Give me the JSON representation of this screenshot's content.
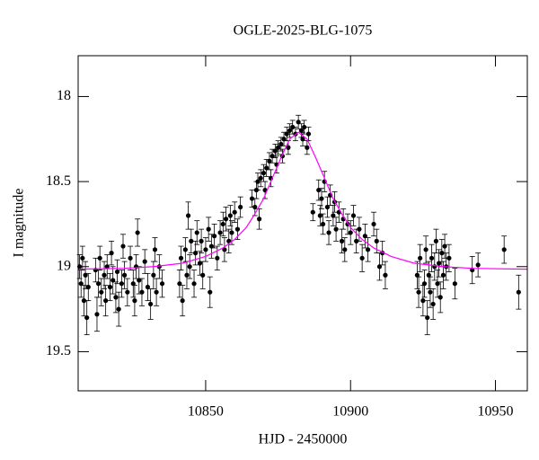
{
  "chart_data": {
    "type": "scatter",
    "title": "OGLE-2025-BLG-1075",
    "xlabel": "HJD - 2450000",
    "ylabel": "I magnitude",
    "xlim": [
      10806,
      10961
    ],
    "ylim": [
      19.73,
      17.76
    ],
    "xticks": [
      10850,
      10900,
      10950
    ],
    "yticks": [
      18,
      18.5,
      19,
      19.5
    ],
    "series": [
      {
        "type": "errorbar",
        "color": "#000000",
        "x": [
          10806.5,
          10807,
          10807.5,
          10808,
          10808.5,
          10809,
          10809.5,
          10812,
          10812.5,
          10813,
          10813.5,
          10814,
          10815,
          10815.5,
          10816,
          10817,
          10817.5,
          10818,
          10819,
          10819.5,
          10820,
          10821,
          10821.5,
          10822,
          10823,
          10824,
          10825,
          10825.5,
          10826,
          10826.5,
          10827,
          10828,
          10829,
          10830,
          10831,
          10832,
          10832.5,
          10833,
          10834,
          10835,
          10841,
          10841.5,
          10842,
          10843,
          10843.5,
          10844,
          10844.5,
          10845,
          10846,
          10846.5,
          10847,
          10848,
          10848.5,
          10849,
          10850,
          10851,
          10851.5,
          10852,
          10853,
          10854,
          10855,
          10856,
          10856.5,
          10857,
          10858,
          10858.5,
          10859,
          10860,
          10861,
          10862,
          10866,
          10867,
          10867.5,
          10868,
          10868.5,
          10869,
          10870,
          10870.5,
          10871,
          10872,
          10872.5,
          10873,
          10874,
          10874.5,
          10875,
          10876,
          10876.5,
          10877,
          10878,
          10878.5,
          10879,
          10880,
          10881,
          10882,
          10883,
          10883.5,
          10884,
          10885,
          10885.5,
          10887,
          10889,
          10889.5,
          10890,
          10890.5,
          10891,
          10892,
          10892.5,
          10893,
          10894,
          10894.5,
          10895,
          10896,
          10897,
          10897.5,
          10898,
          10899,
          10900,
          10901,
          10902,
          10903,
          10904,
          10905,
          10906,
          10908,
          10909,
          10910,
          10911,
          10912,
          10923,
          10923.5,
          10924,
          10925,
          10925.5,
          10926,
          10926.5,
          10927,
          10927.5,
          10928,
          10928.5,
          10929,
          10929.5,
          10930,
          10930.5,
          10931,
          10931.5,
          10932,
          10932.5,
          10933,
          10934,
          10936,
          10942,
          10944,
          10953,
          10958
        ],
        "values": [
          19.0,
          19.1,
          18.95,
          19.2,
          19.05,
          19.3,
          19.12,
          19.02,
          19.28,
          19.1,
          18.95,
          19.15,
          19.05,
          19.2,
          19.0,
          19.12,
          18.92,
          19.08,
          19.18,
          19.03,
          19.25,
          19.1,
          18.88,
          19.05,
          19.15,
          18.95,
          19.1,
          19.2,
          19.0,
          18.8,
          19.08,
          19.15,
          18.97,
          19.12,
          19.22,
          19.05,
          18.9,
          19.15,
          19.0,
          19.1,
          19.1,
          18.95,
          19.2,
          18.9,
          19.05,
          18.7,
          19.0,
          18.85,
          19.1,
          18.92,
          18.8,
          18.98,
          18.85,
          19.05,
          18.9,
          18.78,
          19.15,
          18.88,
          18.82,
          18.95,
          18.8,
          18.75,
          18.9,
          18.72,
          18.85,
          18.7,
          18.8,
          18.68,
          18.78,
          18.65,
          18.6,
          18.65,
          18.55,
          18.5,
          18.72,
          18.48,
          18.45,
          18.55,
          18.42,
          18.38,
          18.48,
          18.35,
          18.32,
          18.4,
          18.3,
          18.28,
          18.35,
          18.25,
          18.22,
          18.3,
          18.2,
          18.18,
          18.22,
          18.15,
          18.2,
          18.25,
          18.18,
          18.3,
          18.22,
          18.68,
          18.55,
          18.7,
          18.6,
          18.75,
          18.5,
          18.65,
          18.8,
          18.58,
          18.7,
          18.62,
          18.78,
          18.68,
          18.85,
          18.72,
          18.9,
          18.75,
          18.8,
          18.7,
          18.85,
          18.78,
          18.95,
          18.82,
          18.9,
          18.75,
          18.85,
          19.0,
          18.92,
          19.05,
          19.05,
          19.15,
          18.95,
          19.2,
          19.1,
          18.9,
          19.3,
          19.05,
          19.15,
          18.95,
          19.22,
          19.0,
          18.85,
          19.1,
          18.98,
          19.18,
          18.92,
          19.05,
          18.88,
          19.0,
          18.95,
          19.1,
          19.02,
          18.99,
          18.9,
          19.15
        ],
        "errors": [
          0.07,
          0.08,
          0.07,
          0.09,
          0.08,
          0.1,
          0.08,
          0.07,
          0.1,
          0.08,
          0.07,
          0.08,
          0.08,
          0.09,
          0.07,
          0.08,
          0.07,
          0.08,
          0.09,
          0.07,
          0.1,
          0.08,
          0.07,
          0.08,
          0.08,
          0.07,
          0.08,
          0.09,
          0.07,
          0.08,
          0.08,
          0.08,
          0.07,
          0.08,
          0.09,
          0.08,
          0.07,
          0.08,
          0.07,
          0.08,
          0.08,
          0.07,
          0.09,
          0.07,
          0.08,
          0.08,
          0.07,
          0.07,
          0.08,
          0.07,
          0.07,
          0.07,
          0.07,
          0.08,
          0.07,
          0.07,
          0.09,
          0.07,
          0.07,
          0.07,
          0.07,
          0.07,
          0.07,
          0.07,
          0.07,
          0.06,
          0.07,
          0.06,
          0.06,
          0.06,
          0.05,
          0.05,
          0.05,
          0.05,
          0.06,
          0.05,
          0.05,
          0.05,
          0.05,
          0.05,
          0.05,
          0.04,
          0.04,
          0.05,
          0.04,
          0.04,
          0.04,
          0.04,
          0.04,
          0.04,
          0.04,
          0.04,
          0.04,
          0.04,
          0.04,
          0.04,
          0.04,
          0.04,
          0.04,
          0.05,
          0.06,
          0.06,
          0.06,
          0.06,
          0.06,
          0.06,
          0.07,
          0.06,
          0.06,
          0.06,
          0.07,
          0.06,
          0.07,
          0.06,
          0.07,
          0.06,
          0.07,
          0.06,
          0.07,
          0.07,
          0.08,
          0.07,
          0.07,
          0.07,
          0.07,
          0.08,
          0.07,
          0.08,
          0.08,
          0.09,
          0.08,
          0.09,
          0.08,
          0.08,
          0.1,
          0.08,
          0.09,
          0.08,
          0.09,
          0.08,
          0.07,
          0.08,
          0.08,
          0.09,
          0.08,
          0.08,
          0.07,
          0.08,
          0.08,
          0.09,
          0.08,
          0.07,
          0.08,
          0.1
        ]
      },
      {
        "type": "line",
        "color": "#ff00ff",
        "x": [
          10806,
          10822,
          10832,
          10842,
          10850,
          10856,
          10860,
          10864,
          10867,
          10870,
          10873,
          10876,
          10879,
          10882,
          10885,
          10888,
          10891,
          10894,
          10897,
          10900,
          10904,
          10908,
          10914,
          10922,
          10932,
          10942,
          10961
        ],
        "values": [
          19.015,
          19.01,
          19.0,
          18.98,
          18.94,
          18.89,
          18.84,
          18.77,
          18.69,
          18.6,
          18.48,
          18.36,
          18.25,
          18.21,
          18.25,
          18.36,
          18.48,
          18.6,
          18.69,
          18.77,
          18.84,
          18.89,
          18.94,
          18.98,
          19.0,
          19.01,
          19.015
        ]
      }
    ]
  }
}
